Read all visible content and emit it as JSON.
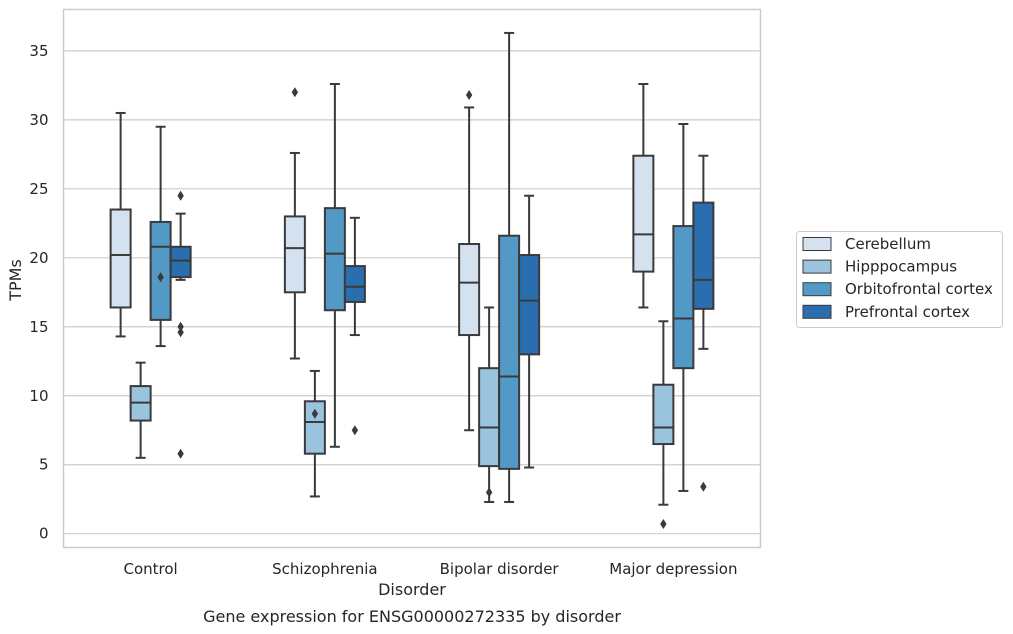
{
  "chart_data": {
    "type": "box",
    "title": "",
    "caption": "Gene expression for ENSG00000272335 by disorder",
    "xlabel": "Disorder",
    "ylabel": "TPMs",
    "ylim": [
      -1.0,
      38.0
    ],
    "yticks": [
      0,
      5,
      10,
      15,
      20,
      25,
      30,
      35
    ],
    "grid": "horizontal",
    "legend_position": "right",
    "categories": [
      "Control",
      "Schizophrenia",
      "Bipolar disorder",
      "Major depression"
    ],
    "series": [
      {
        "name": "Cerebellum",
        "color": "#d4e2f0",
        "boxes": [
          {
            "whisker_low": 14.3,
            "q1": 16.4,
            "median": 20.2,
            "q3": 23.5,
            "whisker_high": 30.5,
            "outliers": []
          },
          {
            "whisker_low": 12.7,
            "q1": 17.5,
            "median": 20.7,
            "q3": 23.0,
            "whisker_high": 27.6,
            "outliers": [
              32.0
            ]
          },
          {
            "whisker_low": 7.5,
            "q1": 14.4,
            "median": 18.2,
            "q3": 21.0,
            "whisker_high": 30.9,
            "outliers": [
              31.8
            ]
          },
          {
            "whisker_low": 16.4,
            "q1": 19.0,
            "median": 21.7,
            "q3": 27.4,
            "whisker_high": 32.6,
            "outliers": []
          }
        ]
      },
      {
        "name": "Hipppocampus",
        "color": "#9ac3dd",
        "boxes": [
          {
            "whisker_low": 5.5,
            "q1": 8.2,
            "median": 9.5,
            "q3": 10.7,
            "whisker_high": 12.4,
            "outliers": []
          },
          {
            "whisker_low": 2.7,
            "q1": 5.8,
            "median": 8.1,
            "q3": 9.6,
            "whisker_high": 11.8,
            "outliers": [
              8.7
            ]
          },
          {
            "whisker_low": 2.3,
            "q1": 4.9,
            "median": 7.7,
            "q3": 12.0,
            "whisker_high": 16.4,
            "outliers": [
              3.0
            ]
          },
          {
            "whisker_low": 2.1,
            "q1": 6.5,
            "median": 7.7,
            "q3": 10.8,
            "whisker_high": 15.4,
            "outliers": [
              0.7
            ]
          }
        ]
      },
      {
        "name": "Orbitofrontal cortex",
        "color": "#5399c6",
        "boxes": [
          {
            "whisker_low": 13.6,
            "q1": 15.5,
            "median": 20.8,
            "q3": 22.6,
            "whisker_high": 29.5,
            "outliers": [
              18.6
            ]
          },
          {
            "whisker_low": 6.3,
            "q1": 16.2,
            "median": 20.3,
            "q3": 23.6,
            "whisker_high": 32.6,
            "outliers": []
          },
          {
            "whisker_low": 2.3,
            "q1": 4.7,
            "median": 11.4,
            "q3": 21.6,
            "whisker_high": 36.3,
            "outliers": []
          },
          {
            "whisker_low": 3.1,
            "q1": 12.0,
            "median": 15.6,
            "q3": 22.3,
            "whisker_high": 29.7,
            "outliers": []
          }
        ]
      },
      {
        "name": "Prefrontal cortex",
        "color": "#2a6eb0",
        "boxes": [
          {
            "whisker_low": 18.4,
            "q1": 18.6,
            "median": 19.8,
            "q3": 20.8,
            "whisker_high": 23.2,
            "outliers": [
              24.5,
              15.0,
              14.6,
              5.8
            ]
          },
          {
            "whisker_low": 14.4,
            "q1": 16.8,
            "median": 17.9,
            "q3": 19.4,
            "whisker_high": 22.9,
            "outliers": [
              7.5
            ]
          },
          {
            "whisker_low": 4.8,
            "q1": 13.0,
            "median": 16.9,
            "q3": 20.2,
            "whisker_high": 24.5,
            "outliers": []
          },
          {
            "whisker_low": 13.4,
            "q1": 16.3,
            "median": 18.4,
            "q3": 24.0,
            "whisker_high": 27.4,
            "outliers": [
              3.4
            ]
          }
        ]
      }
    ]
  }
}
